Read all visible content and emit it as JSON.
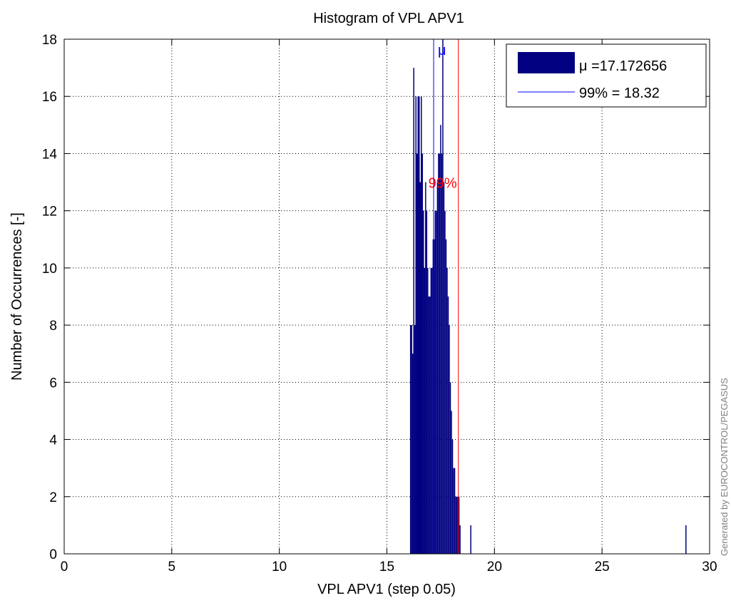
{
  "chart_data": {
    "type": "bar",
    "title": "Histogram of VPL APV1",
    "xlabel": "VPL APV1 (step 0.05)",
    "ylabel": "Number of Occurrences [-]",
    "xlim": [
      0,
      30
    ],
    "ylim": [
      0,
      18
    ],
    "xticks": [
      "0",
      "5",
      "10",
      "15",
      "20",
      "25",
      "30"
    ],
    "yticks": [
      "0",
      "2",
      "4",
      "6",
      "8",
      "10",
      "12",
      "14",
      "16",
      "18"
    ],
    "grid": true,
    "legend_position": "top-right",
    "bin_step": 0.05,
    "bar_color": "#000080",
    "mean_line_color": "#0000ff",
    "pct_line_color": "#ff0000",
    "series": [
      {
        "name": "μ =17.172656",
        "x": [
          16.1,
          16.15,
          16.2,
          16.25,
          16.3,
          16.35,
          16.4,
          16.45,
          16.5,
          16.55,
          16.6,
          16.65,
          16.7,
          16.75,
          16.8,
          16.85,
          16.9,
          16.95,
          17.0,
          17.05,
          17.1,
          17.15,
          17.2,
          17.25,
          17.3,
          17.35,
          17.4,
          17.45,
          17.5,
          17.55,
          17.6,
          17.65,
          17.7,
          17.75,
          17.8,
          17.85,
          17.9,
          17.95,
          18.0,
          18.05,
          18.1,
          18.15,
          18.2,
          18.25,
          18.3,
          18.35,
          18.4,
          18.9,
          28.9
        ],
        "y": [
          8,
          8,
          7,
          17,
          8,
          16,
          14,
          16,
          16,
          13,
          16,
          14,
          12,
          10,
          13,
          12,
          10,
          9,
          9,
          10,
          10,
          11,
          11,
          12,
          12,
          13,
          14,
          14,
          15,
          14,
          18,
          13,
          12,
          11,
          10,
          9,
          8,
          6,
          5,
          4,
          3,
          3,
          2,
          2,
          2,
          2,
          1,
          1,
          1
        ]
      }
    ],
    "reference_lines": [
      {
        "name": "99% = 18.32",
        "x": 18.32,
        "label": "99%"
      },
      {
        "x": 17.172656,
        "label": "μ"
      }
    ],
    "watermark": "Generated by EUROCONTROL/PEGASUS"
  }
}
